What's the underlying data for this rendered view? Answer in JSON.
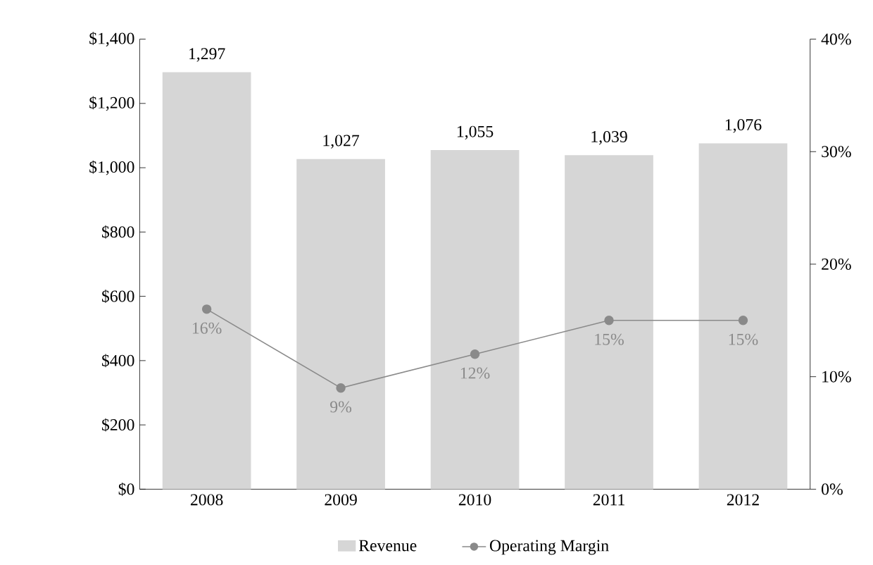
{
  "chart_data": {
    "type": "bar",
    "categories": [
      "2008",
      "2009",
      "2010",
      "2011",
      "2012"
    ],
    "series": [
      {
        "name": "Revenue",
        "color": "#d6d6d6",
        "values": [
          1297,
          1027,
          1055,
          1039,
          1076
        ],
        "value_labels": [
          "1,297",
          "1,027",
          "1,055",
          "1,039",
          "1,076"
        ]
      },
      {
        "name": "Operating Margin",
        "type": "line",
        "axis": "y2",
        "color": "#8a8a8a",
        "values": [
          16,
          9,
          12,
          15,
          15
        ],
        "value_labels": [
          "16%",
          "9%",
          "12%",
          "15%",
          "15%"
        ]
      }
    ],
    "ylim": [
      0,
      1400
    ],
    "yticks": [
      {
        "value": 0,
        "label": "$0"
      },
      {
        "value": 200,
        "label": "$200"
      },
      {
        "value": 400,
        "label": "$400"
      },
      {
        "value": 600,
        "label": "$600"
      },
      {
        "value": 800,
        "label": "$800"
      },
      {
        "value": 1000,
        "label": "$1,000"
      },
      {
        "value": 1200,
        "label": "$1,200"
      },
      {
        "value": 1400,
        "label": "$1,400"
      }
    ],
    "y2lim": [
      0,
      40
    ],
    "y2ticks": [
      {
        "value": 0,
        "label": "0%"
      },
      {
        "value": 10,
        "label": "10%"
      },
      {
        "value": 20,
        "label": "20%"
      },
      {
        "value": 30,
        "label": "30%"
      },
      {
        "value": 40,
        "label": "40%"
      }
    ],
    "marker": "circle",
    "line_style": "solid",
    "legend": "bottom",
    "grid": false
  }
}
